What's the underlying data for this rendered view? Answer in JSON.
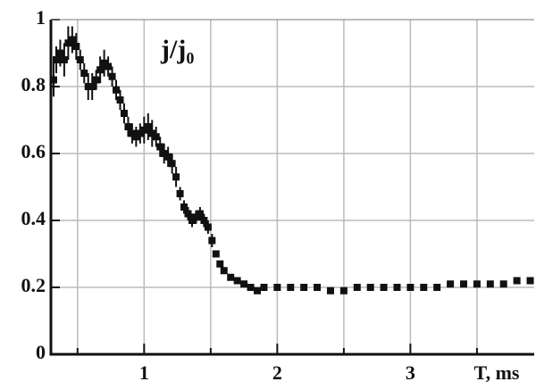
{
  "chart_data": {
    "type": "scatter",
    "annotation": "j/j₀",
    "x_label": "T, ms",
    "color": "#111111",
    "grid": true,
    "xlim": [
      0.3,
      3.93
    ],
    "ylim": [
      0,
      1
    ],
    "xticks": [
      1,
      2,
      3
    ],
    "minor_xticks": [
      0.5,
      1.5,
      2.5,
      3.5
    ],
    "yticks": [
      0,
      0.2,
      0.4,
      0.6,
      0.8,
      1
    ],
    "x": [
      0.32,
      0.34,
      0.37,
      0.4,
      0.43,
      0.46,
      0.49,
      0.52,
      0.55,
      0.58,
      0.61,
      0.64,
      0.67,
      0.7,
      0.73,
      0.76,
      0.79,
      0.82,
      0.85,
      0.88,
      0.91,
      0.94,
      0.97,
      1.0,
      1.03,
      1.06,
      1.09,
      1.12,
      1.15,
      1.18,
      1.21,
      1.24,
      1.27,
      1.3,
      1.33,
      1.36,
      1.39,
      1.42,
      1.45,
      1.48,
      1.51,
      1.54,
      1.57,
      1.6,
      1.65,
      1.7,
      1.75,
      1.8,
      1.85,
      1.9,
      2.0,
      2.1,
      2.2,
      2.3,
      2.4,
      2.5,
      2.6,
      2.7,
      2.8,
      2.9,
      3.0,
      3.1,
      3.2,
      3.3,
      3.4,
      3.5,
      3.6,
      3.7,
      3.8,
      3.9
    ],
    "values": [
      0.82,
      0.88,
      0.9,
      0.88,
      0.93,
      0.94,
      0.92,
      0.88,
      0.84,
      0.8,
      0.8,
      0.82,
      0.85,
      0.87,
      0.86,
      0.83,
      0.79,
      0.76,
      0.72,
      0.68,
      0.66,
      0.65,
      0.66,
      0.67,
      0.68,
      0.66,
      0.65,
      0.62,
      0.6,
      0.59,
      0.57,
      0.53,
      0.48,
      0.44,
      0.42,
      0.4,
      0.41,
      0.42,
      0.4,
      0.38,
      0.34,
      0.3,
      0.27,
      0.25,
      0.23,
      0.22,
      0.21,
      0.2,
      0.19,
      0.2,
      0.2,
      0.2,
      0.2,
      0.2,
      0.19,
      0.19,
      0.2,
      0.2,
      0.2,
      0.2,
      0.2,
      0.2,
      0.2,
      0.21,
      0.21,
      0.21,
      0.21,
      0.21,
      0.22,
      0.22
    ],
    "errors": [
      0.05,
      0.04,
      0.04,
      0.05,
      0.05,
      0.04,
      0.04,
      0.03,
      0.03,
      0.04,
      0.04,
      0.03,
      0.04,
      0.04,
      0.03,
      0.03,
      0.03,
      0.03,
      0.03,
      0.03,
      0.03,
      0.03,
      0.03,
      0.04,
      0.04,
      0.04,
      0.03,
      0.03,
      0.03,
      0.03,
      0.03,
      0.03,
      0.02,
      0.02,
      0.02,
      0.02,
      0.02,
      0.02,
      0.02,
      0.02,
      0.02,
      0.01,
      0.01,
      0.01,
      0.01,
      0.01,
      0.01,
      0.01,
      0.01,
      0.01,
      0.01,
      0.01,
      0.01,
      0.01,
      0.01,
      0.01,
      0.01,
      0.01,
      0.01,
      0.01,
      0.01,
      0.01,
      0.01,
      0.01,
      0.01,
      0.01,
      0.01,
      0.01,
      0.01,
      0.01
    ]
  }
}
